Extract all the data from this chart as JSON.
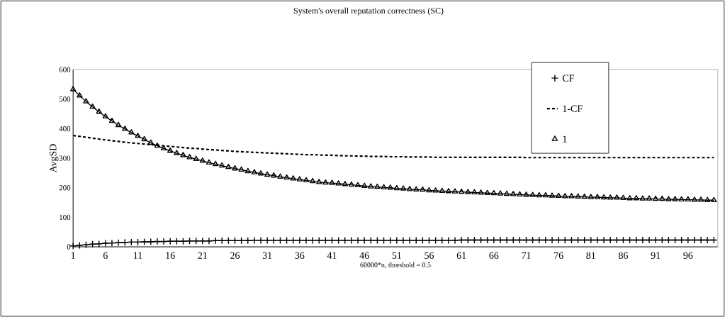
{
  "chart_data": {
    "type": "line",
    "title": "System's overall reputation correctness (SC)",
    "xlabel": "60000*n, threshold = 0.5",
    "ylabel": "AvgSD",
    "categories": [
      "1",
      null,
      null,
      null,
      null,
      "6",
      null,
      null,
      null,
      null,
      "11",
      null,
      null,
      null,
      null,
      "16",
      null,
      null,
      null,
      null,
      "21",
      null,
      null,
      null,
      null,
      "26",
      null,
      null,
      null,
      null,
      "31",
      null,
      null,
      null,
      null,
      "36",
      null,
      null,
      null,
      null,
      "41",
      null,
      null,
      null,
      null,
      "46",
      null,
      null,
      null,
      null,
      "51",
      null,
      null,
      null,
      null,
      "56",
      null,
      null,
      null,
      null,
      "61",
      null,
      null,
      null,
      null,
      "66",
      null,
      null,
      null,
      null,
      "71",
      null,
      null,
      null,
      null,
      "76",
      null,
      null,
      null,
      null,
      "81",
      null,
      null,
      null,
      null,
      "86",
      null,
      null,
      null,
      null,
      "91",
      null,
      null,
      null,
      null,
      "96",
      null,
      null,
      null,
      null
    ],
    "ylim": [
      0,
      600
    ],
    "yticks": [
      0,
      100,
      200,
      300,
      400,
      500,
      600
    ],
    "grid": false,
    "legend": "top right",
    "series": [
      {
        "name": "CF",
        "color": "#000000",
        "marker": "cross",
        "line_style": "solid",
        "values": [
          3,
          5,
          7,
          9,
          10,
          12,
          13,
          14,
          15,
          16,
          16,
          17,
          17,
          18,
          18,
          19,
          19,
          19,
          20,
          20,
          20,
          20,
          21,
          21,
          21,
          21,
          21,
          21,
          22,
          22,
          22,
          22,
          22,
          22,
          22,
          22,
          22,
          22,
          22,
          22,
          22,
          22,
          22,
          22,
          22,
          22,
          22,
          22,
          22,
          22,
          22,
          22,
          22,
          22,
          22,
          22,
          22,
          22,
          22,
          22,
          23,
          23,
          23,
          23,
          23,
          23,
          23,
          23,
          23,
          23,
          23,
          23,
          23,
          23,
          23,
          23,
          23,
          23,
          23,
          23,
          23,
          23,
          23,
          23,
          23,
          23,
          23,
          23,
          23,
          23,
          23,
          23,
          23,
          23,
          23,
          23,
          23,
          23,
          23,
          23
        ]
      },
      {
        "name": "1-CF",
        "color": "#000000",
        "marker": "none",
        "line_style": "dashed",
        "values": [
          377,
          374,
          371,
          368,
          365,
          362,
          359,
          357,
          354,
          352,
          350,
          348,
          346,
          344,
          342,
          340,
          338,
          336,
          334,
          333,
          331,
          329,
          328,
          326,
          325,
          323,
          322,
          321,
          320,
          319,
          318,
          317,
          316,
          315,
          314,
          313,
          312,
          312,
          311,
          310,
          310,
          309,
          308,
          308,
          307,
          307,
          306,
          306,
          306,
          305,
          305,
          305,
          304,
          304,
          304,
          304,
          303,
          303,
          303,
          303,
          303,
          303,
          303,
          303,
          303,
          303,
          303,
          303,
          303,
          303,
          302,
          302,
          302,
          302,
          302,
          302,
          302,
          302,
          302,
          302,
          302,
          302,
          302,
          302,
          302,
          302,
          302,
          302,
          302,
          302,
          302,
          302,
          302,
          302,
          302,
          302,
          302,
          302,
          302,
          302
        ]
      },
      {
        "name": "1",
        "color": "#000000",
        "marker": "triangle",
        "line_style": "solid",
        "values": [
          533,
          512,
          492,
          474,
          457,
          441,
          426,
          412,
          399,
          387,
          375,
          364,
          352,
          342,
          333,
          325,
          317,
          310,
          303,
          297,
          291,
          285,
          280,
          275,
          270,
          265,
          261,
          256,
          252,
          248,
          244,
          241,
          237,
          234,
          231,
          228,
          225,
          222,
          219,
          217,
          216,
          214,
          212,
          210,
          208,
          206,
          204,
          203,
          201,
          200,
          198,
          197,
          195,
          194,
          193,
          191,
          190,
          189,
          188,
          187,
          186,
          185,
          184,
          183,
          182,
          181,
          180,
          179,
          178,
          177,
          176,
          175,
          174,
          174,
          173,
          172,
          171,
          171,
          170,
          169,
          168,
          168,
          167,
          166,
          166,
          165,
          164,
          164,
          163,
          163,
          162,
          162,
          161,
          161,
          160,
          160,
          159,
          159,
          158,
          158
        ]
      }
    ]
  }
}
